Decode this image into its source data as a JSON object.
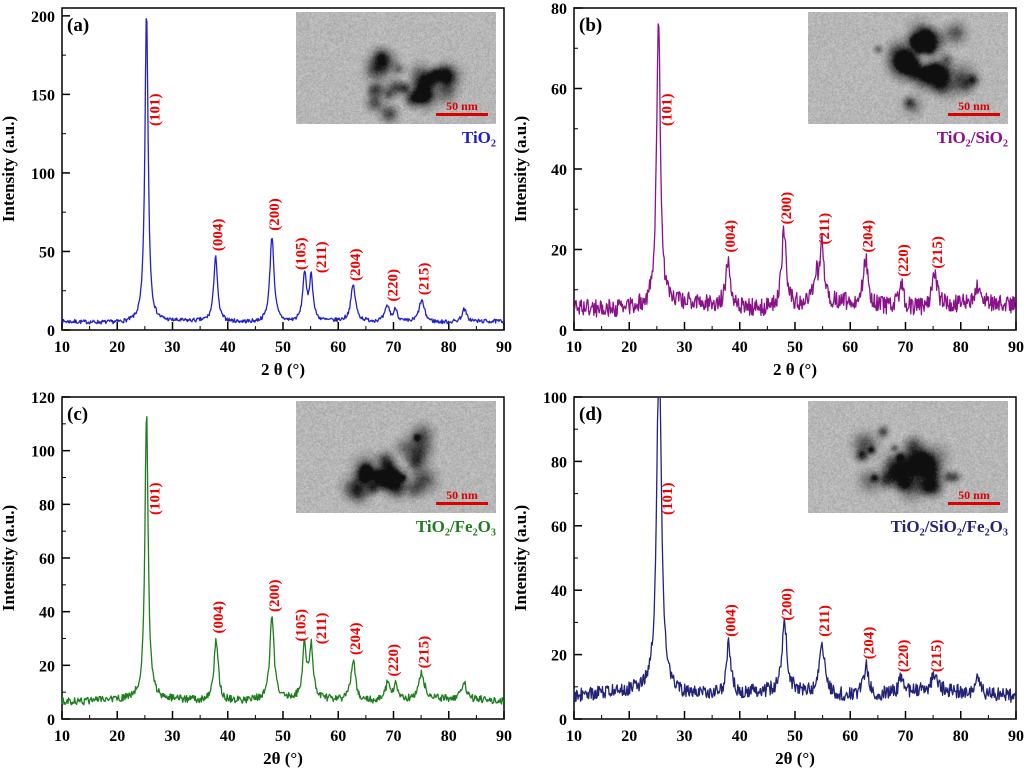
{
  "colors": {
    "background": "#ffffff",
    "axis": "#000000",
    "peak_label": "#ee0000",
    "scale_bar": "#dd0000"
  },
  "chart_data": [
    {
      "type": "line",
      "panel": "(a)",
      "sample": "TiO₂",
      "line_color": "#2121cc",
      "label_color": "#2121cc",
      "xlabel": "2 θ (°)",
      "ylabel": "Intensity (a.u.)",
      "xlim": [
        10,
        90
      ],
      "ylim": [
        0,
        205
      ],
      "xticks": [
        10,
        20,
        30,
        40,
        50,
        60,
        70,
        80,
        90
      ],
      "yticks": [
        0,
        50,
        100,
        150,
        200
      ],
      "baseline": 5,
      "noise_amp": 1.3,
      "scale_bar": "50 nm",
      "peaks": [
        {
          "pos": 25.3,
          "height": 198,
          "width": 0.35,
          "label": "(101)",
          "label_dx": 6
        },
        {
          "pos": 37.8,
          "height": 42,
          "width": 0.4,
          "label": "(004)"
        },
        {
          "pos": 48.0,
          "height": 55,
          "width": 0.45,
          "label": "(200)"
        },
        {
          "pos": 53.9,
          "height": 30,
          "width": 0.4,
          "label": "(105)",
          "label_dx": -6
        },
        {
          "pos": 55.1,
          "height": 28,
          "width": 0.4,
          "label": "(211)",
          "label_dx": 8
        },
        {
          "pos": 62.7,
          "height": 23,
          "width": 0.5,
          "label": "(204)"
        },
        {
          "pos": 68.9,
          "height": 10,
          "width": 0.5,
          "label": "(220)",
          "label_dx": 3
        },
        {
          "pos": 70.4,
          "height": 8,
          "width": 0.4,
          "label": null
        },
        {
          "pos": 75.1,
          "height": 14,
          "width": 0.6,
          "label": "(215)"
        },
        {
          "pos": 82.8,
          "height": 8,
          "width": 0.5,
          "label": null
        }
      ]
    },
    {
      "type": "line",
      "panel": "(b)",
      "sample": "TiO₂/SiO₂",
      "line_color": "#8a1289",
      "label_color": "#8a1289",
      "xlabel": "2 θ (°)",
      "ylabel": "Intensity (a.u.)",
      "xlim": [
        10,
        90
      ],
      "ylim": [
        0,
        80
      ],
      "xticks": [
        10,
        20,
        30,
        40,
        50,
        60,
        70,
        80,
        90
      ],
      "yticks": [
        0,
        20,
        40,
        60,
        80
      ],
      "baseline": 6,
      "noise_amp": 2.2,
      "scale_bar": "50 nm",
      "peaks": [
        {
          "pos": 25.3,
          "height": 72,
          "width": 0.4,
          "label": "(101)",
          "label_dx": 6
        },
        {
          "pos": 37.9,
          "height": 12,
          "width": 0.5,
          "label": "(004)"
        },
        {
          "pos": 48.0,
          "height": 19,
          "width": 0.5,
          "label": "(200)"
        },
        {
          "pos": 53.8,
          "height": 7,
          "width": 0.4,
          "label": null
        },
        {
          "pos": 54.9,
          "height": 14,
          "width": 0.45,
          "label": "(211)"
        },
        {
          "pos": 62.8,
          "height": 12,
          "width": 0.5,
          "label": "(204)"
        },
        {
          "pos": 69.2,
          "height": 6,
          "width": 0.5,
          "label": "(220)"
        },
        {
          "pos": 75.3,
          "height": 8,
          "width": 0.6,
          "label": "(215)"
        },
        {
          "pos": 82.9,
          "height": 4,
          "width": 0.5,
          "label": null
        }
      ]
    },
    {
      "type": "line",
      "panel": "(c)",
      "sample": "TiO₂/Fe₂O₃",
      "line_color": "#1e7d1e",
      "label_color": "#1e7d1e",
      "xlabel": "2θ (°)",
      "ylabel": "Intensity (a.u.)",
      "xlim": [
        10,
        90
      ],
      "ylim": [
        0,
        120
      ],
      "xticks": [
        10,
        20,
        30,
        40,
        50,
        60,
        70,
        80,
        90
      ],
      "yticks": [
        0,
        20,
        40,
        60,
        80,
        100,
        120
      ],
      "baseline": 7,
      "noise_amp": 1.4,
      "scale_bar": "50 nm",
      "peaks": [
        {
          "pos": 25.3,
          "height": 107,
          "width": 0.35,
          "label": "(101)",
          "label_dx": 6
        },
        {
          "pos": 37.9,
          "height": 23,
          "width": 0.45,
          "label": "(004)"
        },
        {
          "pos": 48.0,
          "height": 31,
          "width": 0.45,
          "label": "(200)"
        },
        {
          "pos": 53.9,
          "height": 20,
          "width": 0.4,
          "label": "(105)",
          "label_dx": -6
        },
        {
          "pos": 55.1,
          "height": 19,
          "width": 0.4,
          "label": "(211)",
          "label_dx": 8
        },
        {
          "pos": 62.7,
          "height": 15,
          "width": 0.5,
          "label": "(204)"
        },
        {
          "pos": 69.0,
          "height": 7,
          "width": 0.5,
          "label": "(220)",
          "label_dx": 3
        },
        {
          "pos": 70.4,
          "height": 6,
          "width": 0.4,
          "label": null
        },
        {
          "pos": 75.1,
          "height": 10,
          "width": 0.6,
          "label": "(215)"
        },
        {
          "pos": 82.8,
          "height": 6,
          "width": 0.5,
          "label": null
        }
      ]
    },
    {
      "type": "line",
      "panel": "(d)",
      "sample": "TiO₂/SiO₂/Fe₂O₃",
      "line_color": "#232378",
      "label_color": "#232378",
      "xlabel": "2θ (°)",
      "ylabel": "Intensity (a.u.)",
      "xlim": [
        10,
        90
      ],
      "ylim": [
        0,
        100
      ],
      "xticks": [
        10,
        20,
        30,
        40,
        50,
        60,
        70,
        80,
        90
      ],
      "yticks": [
        0,
        20,
        40,
        60,
        80,
        100
      ],
      "baseline": 8,
      "noise_amp": 2.2,
      "scale_bar": "50 nm",
      "peaks": [
        {
          "pos": 25.4,
          "height": 110,
          "width": 0.5,
          "label": "(101)",
          "label_dx": 6
        },
        {
          "pos": 38.0,
          "height": 16,
          "width": 0.5,
          "label": "(004)"
        },
        {
          "pos": 48.1,
          "height": 21,
          "width": 0.5,
          "label": "(200)"
        },
        {
          "pos": 54.9,
          "height": 16,
          "width": 0.5,
          "label": "(211)"
        },
        {
          "pos": 62.9,
          "height": 9,
          "width": 0.55,
          "label": "(204)"
        },
        {
          "pos": 69.2,
          "height": 5,
          "width": 0.5,
          "label": "(220)"
        },
        {
          "pos": 75.2,
          "height": 5,
          "width": 0.6,
          "label": "(215)"
        },
        {
          "pos": 83.0,
          "height": 4,
          "width": 0.5,
          "label": null
        }
      ]
    }
  ]
}
